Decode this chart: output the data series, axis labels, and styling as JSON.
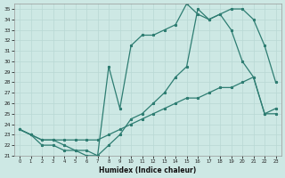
{
  "title": "",
  "xlabel": "Humidex (Indice chaleur)",
  "bg_color": "#cde8e4",
  "line_color": "#2e7d72",
  "grid_color": "#b8d8d4",
  "xlim": [
    -0.5,
    23.5
  ],
  "ylim": [
    21.0,
    35.5
  ],
  "xticks": [
    0,
    1,
    2,
    3,
    4,
    5,
    6,
    7,
    8,
    9,
    10,
    11,
    12,
    13,
    14,
    15,
    16,
    17,
    18,
    19,
    20,
    21,
    22,
    23
  ],
  "yticks": [
    21,
    22,
    23,
    24,
    25,
    26,
    27,
    28,
    29,
    30,
    31,
    32,
    33,
    34,
    35
  ],
  "line1_x": [
    0,
    1,
    2,
    3,
    4,
    5,
    6,
    7,
    8,
    9,
    10,
    11,
    12,
    13,
    14,
    15,
    16,
    17,
    18,
    19,
    20,
    21,
    22,
    23
  ],
  "line1_y": [
    23.5,
    23.0,
    22.5,
    22.5,
    22.5,
    22.5,
    22.5,
    22.5,
    23.0,
    23.5,
    24.0,
    24.5,
    25.0,
    25.5,
    26.0,
    26.5,
    26.5,
    27.0,
    27.5,
    27.5,
    28.0,
    28.5,
    25.0,
    25.0
  ],
  "line2_x": [
    0,
    1,
    2,
    3,
    4,
    5,
    6,
    7,
    8,
    9,
    10,
    11,
    12,
    13,
    14,
    15,
    16,
    17,
    18,
    19,
    20,
    21,
    22,
    23
  ],
  "line2_y": [
    23.5,
    23.0,
    22.5,
    22.5,
    22.0,
    21.5,
    21.5,
    21.0,
    29.5,
    25.5,
    31.5,
    32.5,
    32.5,
    33.0,
    33.5,
    35.5,
    34.5,
    34.0,
    34.5,
    33.0,
    30.0,
    28.5,
    25.0,
    25.5
  ],
  "line3_x": [
    0,
    1,
    2,
    3,
    4,
    5,
    6,
    7,
    8,
    9,
    10,
    11,
    12,
    13,
    14,
    15,
    16,
    17,
    18,
    19,
    20,
    21,
    22,
    23
  ],
  "line3_y": [
    23.5,
    23.0,
    22.0,
    22.0,
    21.5,
    21.5,
    21.0,
    21.0,
    22.0,
    23.0,
    24.5,
    25.0,
    26.0,
    27.0,
    28.5,
    29.5,
    35.0,
    34.0,
    34.5,
    35.0,
    35.0,
    34.0,
    31.5,
    28.0
  ]
}
